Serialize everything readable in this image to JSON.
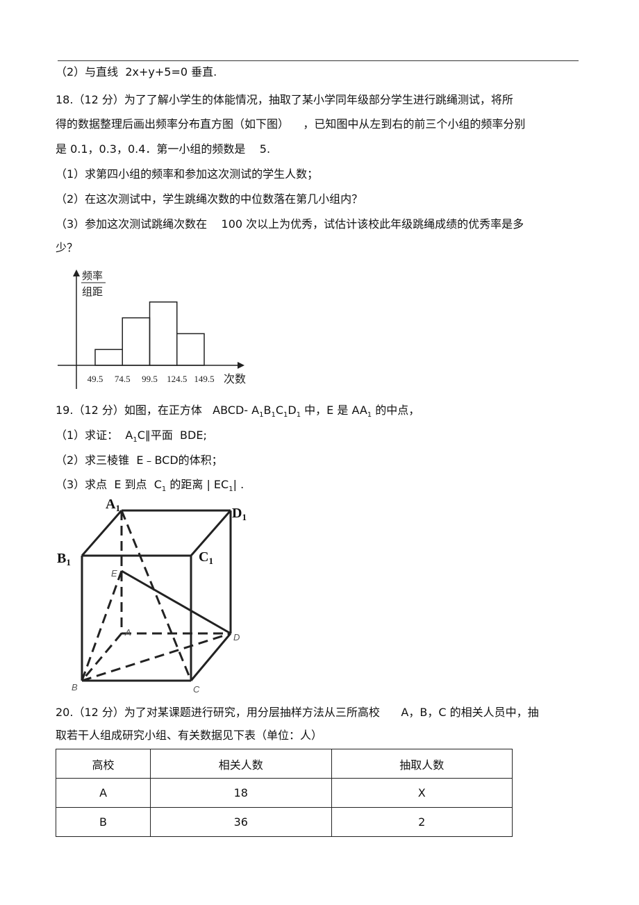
{
  "blocks": [
    {
      "segments": [
        "（2）与直线  2x+y+5=0 垂直."
      ]
    },
    {
      "segments": [
        "18.（12 分）为了了解小学生的体能情况，抽取了某小学同年级部分学生进行跳绳测试，将所"
      ]
    },
    {
      "segments": [
        "得的数据整理后画出频率分布直方图（如下图）    ，已知图中从左到右的前三个小组的频率分别"
      ]
    },
    {
      "segments": [
        "是 0.1，0.3，0.4．第一小组的频数是    5."
      ]
    },
    {
      "segments": [
        "（1）求第四小组的频率和参加这次测试的学生人数；"
      ]
    },
    {
      "segments": [
        "（2）在这次测试中，学生跳绳次数的中位数落在第几小组内？"
      ]
    },
    {
      "segments": [
        "（3）参加这次测试跳绳次数在    100 次以上为优秀，试估计该校此年级跳绳成绩的优秀率是多"
      ]
    },
    {
      "segments": [
        "少？"
      ]
    },
    {
      "segments": [
        "19.（12 分）如图，在正方体   ABCD- A",
        {
          "sub": "1"
        },
        "B",
        {
          "sub": "1"
        },
        "C",
        {
          "sub": "1"
        },
        "D",
        {
          "sub": "1"
        },
        " 中，E 是 AA",
        {
          "sub": "1"
        },
        " 的中点，"
      ]
    },
    {
      "segments": [
        "（1）求证：  A",
        {
          "sub": "1"
        },
        "C∥平面  BDE;"
      ]
    },
    {
      "segments": [
        "（2）求三棱锥  E﹣BCD的体积；"
      ]
    },
    {
      "segments": [
        "（3）求点  E 到点  C",
        {
          "sub": "1"
        },
        " 的距离 | EC",
        {
          "sub": "1"
        },
        "| ."
      ]
    },
    {
      "segments": [
        "20.（12 分）为了对某课题进行研究，用分层抽样方法从三所高校      A，B，C 的相关人员中，抽"
      ]
    },
    {
      "segments": [
        "取若干人组成研究小组、有关数据见下表（单位：人）"
      ]
    }
  ],
  "histogram": {
    "y_label_top": "频率",
    "y_label_bottom": "组距",
    "x_label": "次数",
    "bins": [
      49.5,
      74.5,
      99.5,
      124.5,
      149.5
    ],
    "values": [
      0.1,
      0.3,
      0.4,
      0.2
    ],
    "ylim": [
      0,
      0.5
    ]
  },
  "cube": {
    "labels": [
      {
        "main": "A",
        "sub": "1"
      },
      {
        "main": "D",
        "sub": "1"
      },
      {
        "main": "B",
        "sub": "1"
      },
      {
        "main": "C",
        "sub": "1"
      },
      {
        "main": "E"
      },
      {
        "main": "A"
      },
      {
        "main": "D"
      },
      {
        "main": "B"
      },
      {
        "main": "C"
      }
    ]
  },
  "table": {
    "header": [
      "高校",
      "相关人数",
      "抽取人数"
    ],
    "rows": [
      [
        "A",
        "18",
        "X"
      ],
      [
        "B",
        "36",
        "2"
      ]
    ]
  }
}
